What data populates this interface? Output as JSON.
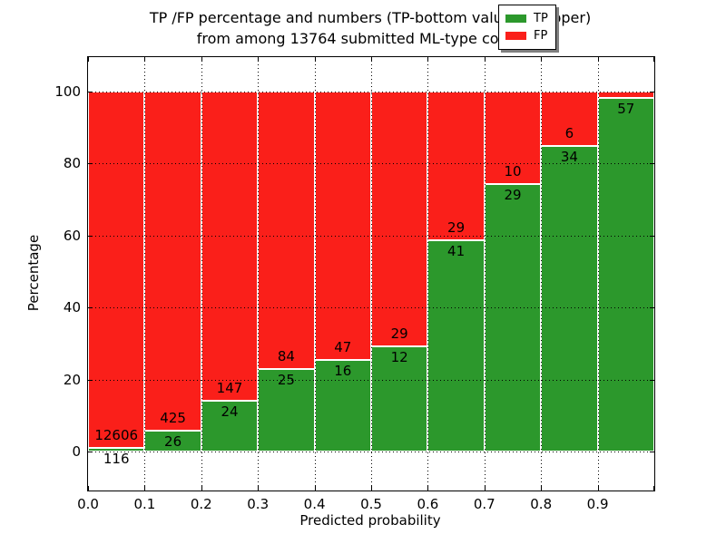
{
  "title": {
    "line1": "TP /FP percentage and numbers (TP-bottom value, FP-upper)",
    "line2": "from among 13764 submitted ML-type contacts"
  },
  "axes": {
    "xlabel": "Predicted probability",
    "ylabel": "Percentage",
    "x_tick_labels": [
      "0.0",
      "0.1",
      "0.2",
      "0.3",
      "0.4",
      "0.5",
      "0.6",
      "0.7",
      "0.8",
      "0.9"
    ],
    "y_tick_labels": [
      "0",
      "20",
      "40",
      "60",
      "80",
      "100"
    ],
    "y_tick_values": [
      0,
      20,
      40,
      60,
      80,
      100
    ]
  },
  "colors": {
    "tp": "#2c982c",
    "fp": "#fa1f1a",
    "grid": "#000000"
  },
  "legend": {
    "position": "upper right",
    "entries": [
      {
        "name": "tp",
        "label": "TP",
        "color": "#2c982c"
      },
      {
        "name": "fp",
        "label": "FP",
        "color": "#fa1f1a"
      }
    ]
  },
  "chart_data": {
    "type": "bar",
    "stacked": true,
    "normalized": "each bin scaled to 100%",
    "title": "TP /FP percentage and numbers (TP-bottom value, FP-upper) from among 13764 submitted ML-type contacts",
    "xlabel": "Predicted probability",
    "ylabel": "Percentage",
    "xlim": [
      0.0,
      1.0
    ],
    "ylim_view": [
      -10.8,
      109.6
    ],
    "grid": "dotted, black, drawn above bars",
    "bin_edges": [
      0.0,
      0.1,
      0.2,
      0.3,
      0.4,
      0.5,
      0.6,
      0.7,
      0.8,
      0.9,
      1.0
    ],
    "series": [
      {
        "name": "TP",
        "color": "#2c982c",
        "counts": [
          116,
          26,
          24,
          25,
          16,
          12,
          41,
          29,
          34,
          57
        ]
      },
      {
        "name": "FP",
        "color": "#fa1f1a",
        "counts": [
          12606,
          425,
          147,
          84,
          47,
          29,
          29,
          10,
          6,
          null
        ]
      }
    ],
    "tp_percent": [
      0.91,
      5.77,
      14.04,
      22.94,
      25.4,
      29.27,
      58.57,
      74.36,
      85.0,
      98.3
    ],
    "bar_labels": {
      "tp": [
        "116",
        "26",
        "24",
        "25",
        "16",
        "12",
        "41",
        "29",
        "34",
        "57"
      ],
      "fp": [
        "12606",
        "425",
        "147",
        "84",
        "47",
        "29",
        "29",
        "10",
        "6",
        ""
      ]
    }
  }
}
